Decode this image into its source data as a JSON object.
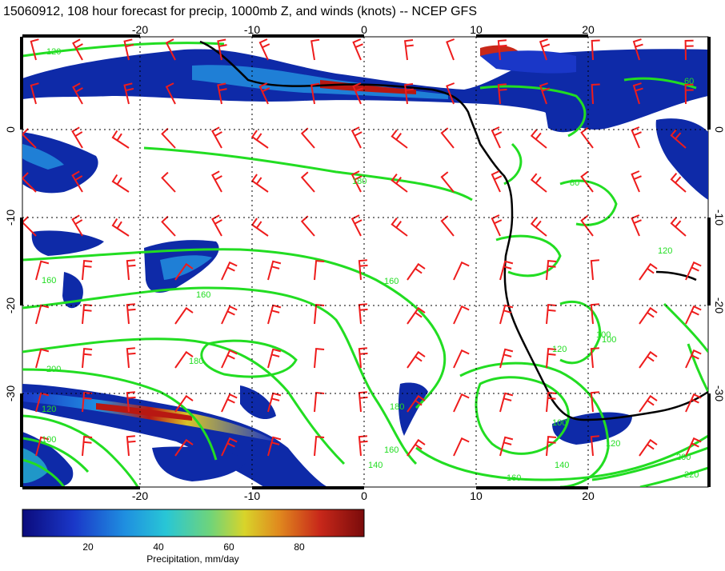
{
  "title": "15060912, 108 hour forecast for precip, 1000mb Z, and winds (knots) -- NCEP GFS",
  "map": {
    "lon_range": [
      -30,
      30
    ],
    "lat_range": [
      -40,
      10
    ],
    "lon_ticks": [
      "-20",
      "-10",
      "0",
      "10",
      "20"
    ],
    "lat_ticks": [
      "0",
      "-10",
      "-20",
      "-30"
    ],
    "contour_labels": [
      "120",
      "60",
      "80",
      "120",
      "160",
      "160",
      "160",
      "180",
      "200",
      "180",
      "120",
      "100",
      "160",
      "140",
      "200",
      "220",
      "180",
      "100",
      "140",
      "120",
      "120",
      "100",
      "160",
      "100"
    ],
    "colors": {
      "precip_low": "#0a1e9c",
      "precip_mid": "#1f7fd6",
      "precip_high": "#b81812",
      "contour": "#22dd22",
      "barb": "#ee1c1c",
      "coast": "#000000"
    }
  },
  "colorbar": {
    "ticks": [
      "20",
      "40",
      "60",
      "80"
    ],
    "label": "Precipitation, mm/day",
    "range": [
      0,
      100
    ]
  }
}
